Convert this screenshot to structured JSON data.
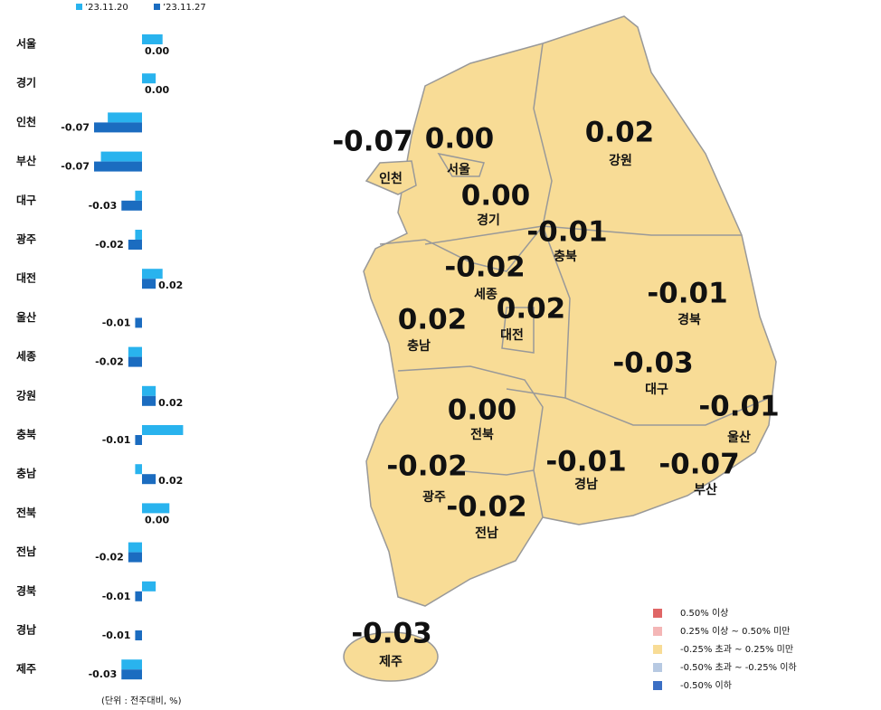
{
  "chart_data": [
    {
      "type": "hbar",
      "categories": [
        "서울",
        "경기",
        "인천",
        "부산",
        "대구",
        "광주",
        "대전",
        "울산",
        "세종",
        "강원",
        "충북",
        "충남",
        "전북",
        "전남",
        "경북",
        "경남",
        "제주"
      ],
      "series": [
        {
          "name": "’23.11.20",
          "color": "#29b3ee",
          "values": [
            0.03,
            0.02,
            -0.05,
            -0.06,
            -0.01,
            -0.01,
            0.03,
            0,
            -0.02,
            0.02,
            0.06,
            -0.01,
            0.04,
            -0.02,
            0.02,
            0,
            -0.03
          ]
        },
        {
          "name": "’23.11.27",
          "color": "#1b6cc0",
          "values": [
            0,
            0,
            -0.07,
            -0.07,
            -0.03,
            -0.02,
            0.02,
            -0.01,
            -0.02,
            0.02,
            -0.01,
            0.02,
            0,
            -0.02,
            -0.01,
            -0.01,
            -0.03
          ],
          "value_labels": [
            "0.00",
            "0.00",
            "-0.07",
            "-0.07",
            "-0.03",
            "-0.02",
            "0.02",
            "-0.01",
            "-0.02",
            "0.02",
            "-0.01",
            "0.02",
            "0.00",
            "-0.02",
            "-0.01",
            "-0.01",
            "-0.03"
          ]
        }
      ],
      "unit_note": "(단위 : 전주대비, %)"
    },
    {
      "type": "map",
      "regions": [
        "인천",
        "서울",
        "경기",
        "강원",
        "충북",
        "세종",
        "대전",
        "충남",
        "경북",
        "대구",
        "울산",
        "전북",
        "경남",
        "부산",
        "광주",
        "전남",
        "제주"
      ],
      "values": [
        -0.07,
        0,
        0,
        0.02,
        -0.01,
        -0.02,
        0.02,
        0.02,
        -0.01,
        -0.03,
        -0.01,
        0,
        -0.01,
        -0.07,
        -0.02,
        -0.02,
        -0.03
      ],
      "value_labels": [
        "-0.07",
        "0.00",
        "0.00",
        "0.02",
        "-0.01",
        "-0.02",
        "0.02",
        "0.02",
        "-0.01",
        "-0.03",
        "-0.01",
        "0.00",
        "-0.01",
        "-0.07",
        "-0.02",
        "-0.02",
        "-0.03"
      ],
      "color": "#f8dc96",
      "legend": [
        {
          "label": "0.50% 이상",
          "color": "#e06666"
        },
        {
          "label": "0.25% 이상 ~ 0.50% 미만",
          "color": "#f4b6b6"
        },
        {
          "label": "-0.25% 초과 ~ 0.25% 미만",
          "color": "#f8dc96"
        },
        {
          "label": "-0.50% 초과 ~ -0.25% 이하",
          "color": "#b7c9e2"
        },
        {
          "label": "-0.50% 이하",
          "color": "#3b6fc4"
        }
      ]
    }
  ]
}
